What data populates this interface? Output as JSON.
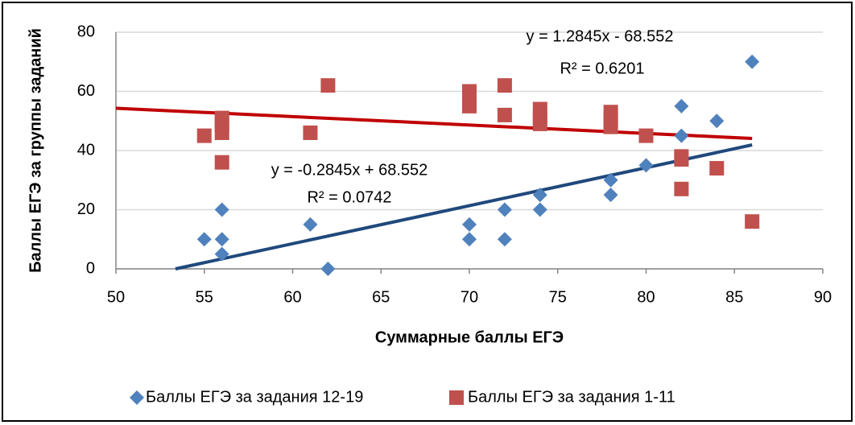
{
  "chart_data": {
    "type": "scatter",
    "xlabel": "Суммарные баллы ЕГЭ",
    "ylabel": "Баллы ЕГЭ за группы заданий",
    "xlim": [
      50,
      90
    ],
    "xticks": [
      50,
      55,
      60,
      65,
      70,
      75,
      80,
      85,
      90
    ],
    "ylim": [
      0,
      80
    ],
    "yticks": [
      0,
      20,
      40,
      60,
      80
    ],
    "grid": true,
    "legend": "bottom",
    "series": [
      {
        "name": "Баллы ЕГЭ за задания 12-19",
        "color": "#4f81bd",
        "marker": "diamond",
        "x": [
          55,
          56,
          56,
          56,
          61,
          62,
          70,
          70,
          72,
          72,
          74,
          74,
          78,
          78,
          80,
          82,
          82,
          84,
          86
        ],
        "values": [
          10,
          10,
          5,
          20,
          15,
          0,
          10,
          15,
          20,
          10,
          25,
          20,
          30,
          25,
          35,
          55,
          45,
          50,
          70
        ]
      },
      {
        "name": "Баллы ЕГЭ за задания 1-11",
        "color": "#c0504d",
        "marker": "square",
        "x": [
          55,
          56,
          56,
          56,
          56,
          61,
          62,
          70,
          70,
          70,
          72,
          72,
          74,
          74,
          74,
          78,
          78,
          78,
          80,
          82,
          82,
          82,
          84,
          86
        ],
        "values": [
          45,
          51,
          49,
          46,
          36,
          46,
          62,
          60,
          58,
          55,
          62,
          52,
          54,
          51,
          49,
          53,
          50,
          48,
          45,
          38,
          37,
          27,
          34,
          16
        ]
      }
    ],
    "trendlines": [
      {
        "color": "#1f497d",
        "x": [
          53.37,
          86
        ],
        "values": [
          0,
          41.9
        ]
      },
      {
        "color": "#c00000",
        "x": [
          50,
          86
        ],
        "values": [
          54.3,
          44.08
        ]
      }
    ],
    "annotations": [
      "y = 1.2845x - 68.552",
      "R² = 0.6201",
      "y = -0.2845x + 68.552",
      "R² = 0.0742"
    ]
  }
}
